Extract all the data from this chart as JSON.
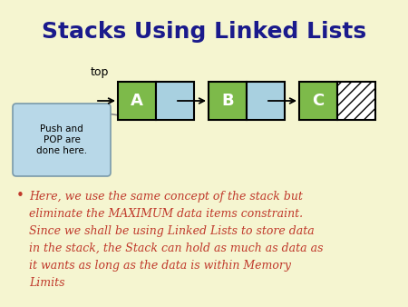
{
  "title": "Stacks Using Linked Lists",
  "title_color": "#1a1a8c",
  "title_fontsize": 18,
  "background_color": "#f5f5d0",
  "body_lines": [
    "Here, we use the same concept of the stack but",
    "eliminate the MAXIMUM data items constraint.",
    "Since we shall be using Linked Lists to store data",
    "in the stack, the Stack can hold as much as data as",
    "it wants as long as the data is within Memory",
    "Limits"
  ],
  "body_color": "#c0392b",
  "node_labels": [
    "A",
    "B",
    "C"
  ],
  "node_data_color": "#7dba4a",
  "node_pointer_color": "#a8d0e0",
  "callout_text": "Push and\nPOP are\ndone here.",
  "callout_bg": "#b8d8e8",
  "callout_border": "#7a9aaa",
  "top_label": "top"
}
